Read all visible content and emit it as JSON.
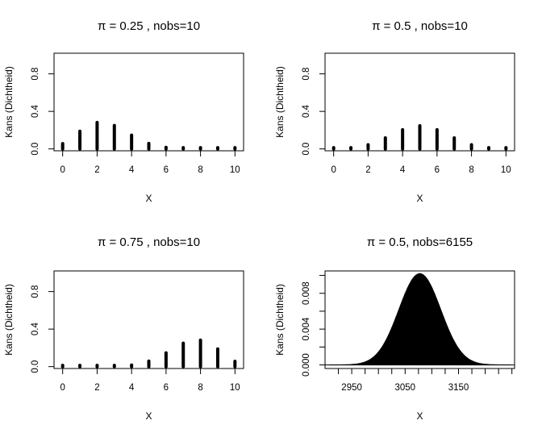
{
  "chart_data": [
    {
      "type": "bar",
      "title": "π = 0.25 , nobs=10",
      "xlabel": "X",
      "ylabel": "Kans (Dichtheid)",
      "x": [
        0,
        1,
        2,
        3,
        4,
        5,
        6,
        7,
        8,
        9,
        10
      ],
      "values": [
        0.056,
        0.188,
        0.282,
        0.25,
        0.146,
        0.058,
        0.016,
        0.003,
        0.0004,
        3e-05,
        1e-06
      ],
      "xlim": [
        -0.5,
        10.5
      ],
      "ylim": [
        -0.02,
        1.02
      ],
      "xticks": [
        "0",
        "2",
        "4",
        "6",
        "8",
        "10"
      ],
      "yticks": [
        "0.0",
        "0.4",
        "0.8"
      ]
    },
    {
      "type": "bar",
      "title": "π = 0.5 , nobs=10",
      "xlabel": "X",
      "ylabel": "Kans (Dichtheid)",
      "x": [
        0,
        1,
        2,
        3,
        4,
        5,
        6,
        7,
        8,
        9,
        10
      ],
      "values": [
        0.001,
        0.01,
        0.044,
        0.117,
        0.205,
        0.246,
        0.205,
        0.117,
        0.044,
        0.01,
        0.001
      ],
      "xlim": [
        -0.5,
        10.5
      ],
      "ylim": [
        -0.02,
        1.02
      ],
      "xticks": [
        "0",
        "2",
        "4",
        "6",
        "8",
        "10"
      ],
      "yticks": [
        "0.0",
        "0.4",
        "0.8"
      ]
    },
    {
      "type": "bar",
      "title": "π = 0.75 , nobs=10",
      "xlabel": "X",
      "ylabel": "Kans (Dichtheid)",
      "x": [
        0,
        1,
        2,
        3,
        4,
        5,
        6,
        7,
        8,
        9,
        10
      ],
      "values": [
        1e-06,
        3e-05,
        0.0004,
        0.003,
        0.016,
        0.058,
        0.146,
        0.25,
        0.282,
        0.188,
        0.056
      ],
      "xlim": [
        -0.5,
        10.5
      ],
      "ylim": [
        -0.02,
        1.02
      ],
      "xticks": [
        "0",
        "2",
        "4",
        "6",
        "8",
        "10"
      ],
      "yticks": [
        "0.0",
        "0.4",
        "0.8"
      ]
    },
    {
      "type": "area",
      "title": "π = 0.5, nobs=6155",
      "xlabel": "X",
      "ylabel": "Kans (Dichtheid)",
      "distribution": {
        "n": 6155,
        "p": 0.5,
        "mean": 3077.5,
        "sd": 39.2,
        "peak": 0.0102
      },
      "xlim": [
        2900,
        3255
      ],
      "ylim": [
        -0.0004,
        0.0105
      ],
      "xticks": [
        "2950",
        "3050",
        "3150"
      ],
      "yticks": [
        "0.000",
        "0.004",
        "0.008"
      ]
    }
  ]
}
